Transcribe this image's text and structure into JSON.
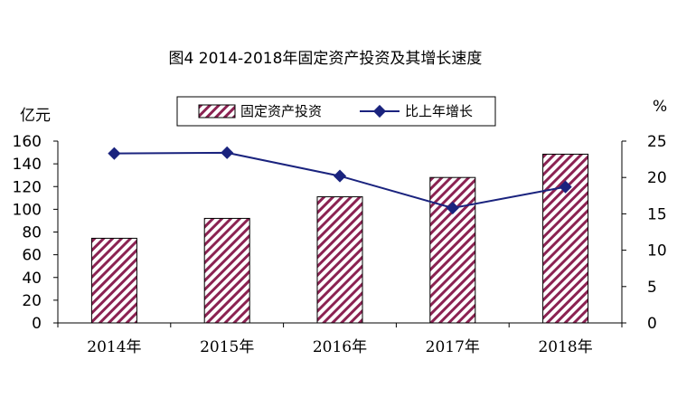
{
  "chart_data": {
    "type": "bar",
    "title": "图4  2014-2018年固定资产投资及其增长速度",
    "categories": [
      "2014年",
      "2015年",
      "2016年",
      "2017年",
      "2018年"
    ],
    "series": [
      {
        "name": "固定资产投资",
        "type": "bar",
        "axis": "left",
        "values": [
          74.5,
          92,
          111,
          128,
          148.5
        ]
      },
      {
        "name": "比上年增长",
        "type": "line",
        "axis": "right",
        "values": [
          23.3,
          23.4,
          20.2,
          15.8,
          18.7
        ]
      }
    ],
    "y_left": {
      "unit_label": "亿元",
      "ylim": [
        0,
        160
      ],
      "ticks": [
        "0",
        "20",
        "40",
        "60",
        "80",
        "100",
        "120",
        "140",
        "160"
      ]
    },
    "y_right": {
      "unit_label": "%",
      "ylim": [
        0,
        25
      ],
      "ticks": [
        "0",
        "5",
        "10",
        "15",
        "20",
        "25"
      ]
    },
    "legend_position": "top",
    "grid": false,
    "colors": {
      "bar_stripe": "#8B2252",
      "line": "#1A237E",
      "axis": "#000000"
    }
  }
}
